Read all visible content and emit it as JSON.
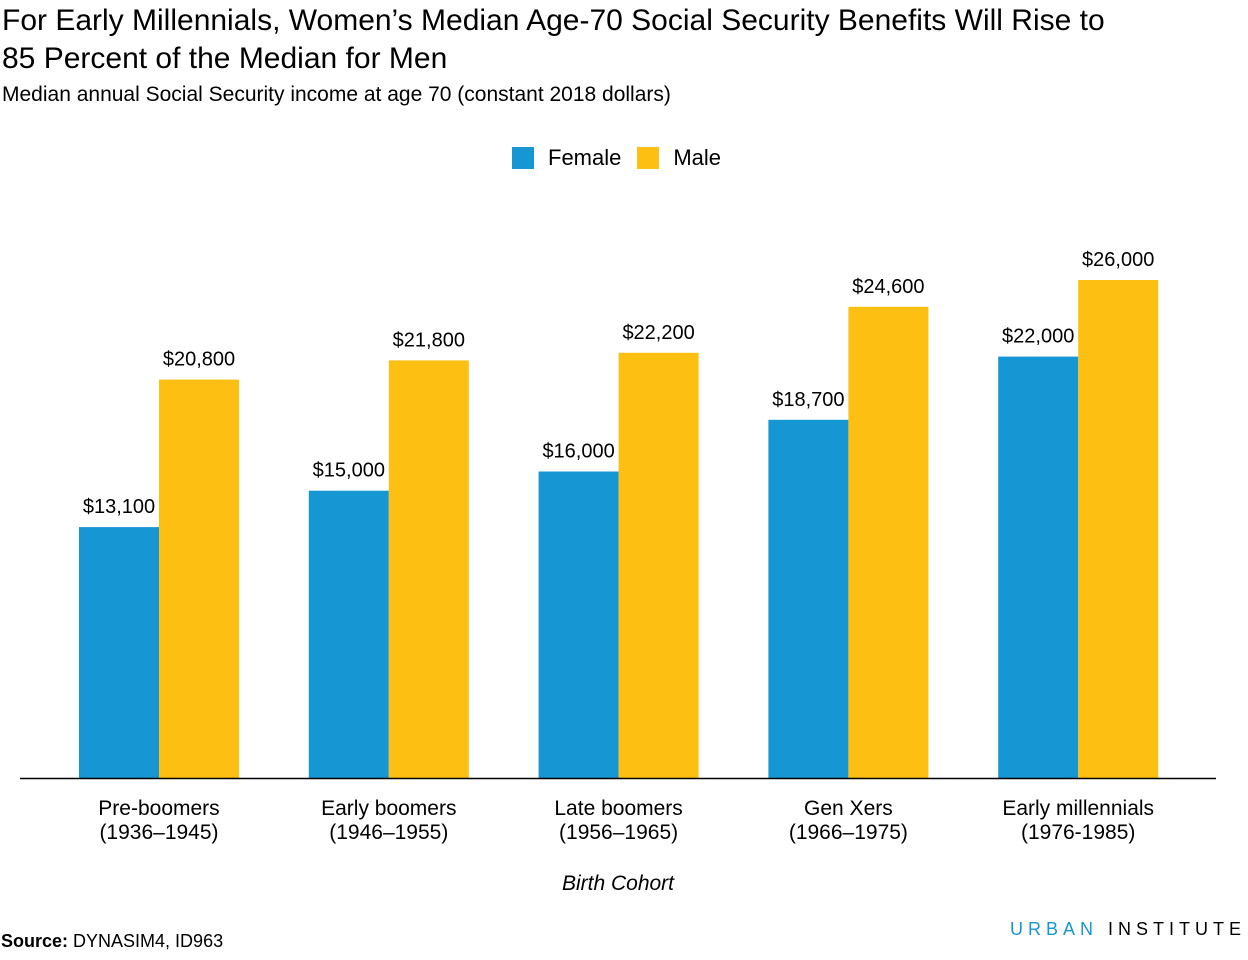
{
  "title_lines": [
    "For Early Millennials, Women’s Median Age-70 Social Security Benefits Will Rise to",
    "85 Percent of the Median for Men"
  ],
  "subtitle": "Median annual Social Security income at age 70 (constant 2018 dollars)",
  "source_label": "Source:",
  "source_text": " DYNASIM4, ID963",
  "brand": {
    "part1": "URBAN",
    "part2": "INSTITUTE"
  },
  "chart_data": {
    "type": "bar",
    "title": "For Early Millennials, Women’s Median Age-70 Social Security Benefits Will Rise to 85 Percent of the Median for Men",
    "subtitle": "Median annual Social Security income at age 70 (constant 2018 dollars)",
    "xlabel": "Birth Cohort",
    "ylabel": "",
    "ylim": [
      0,
      26000
    ],
    "grid": false,
    "legend_position": "top-center",
    "categories": [
      [
        "Pre-boomers",
        "(1936–1945)"
      ],
      [
        "Early boomers",
        "(1946–1955)"
      ],
      [
        "Late boomers",
        "(1956–1965)"
      ],
      [
        "Gen Xers",
        "(1966–1975)"
      ],
      [
        "Early millennials",
        "(1976-1985)"
      ]
    ],
    "series": [
      {
        "name": "Female",
        "color": "#1696d2",
        "values": [
          13100,
          15000,
          16000,
          18700,
          22000
        ],
        "labels": [
          "$13,100",
          "$15,000",
          "$16,000",
          "$18,700",
          "$22,000"
        ]
      },
      {
        "name": "Male",
        "color": "#fdbf11",
        "values": [
          20800,
          21800,
          22200,
          24600,
          26000
        ],
        "labels": [
          "$20,800",
          "$21,800",
          "$22,200",
          "$24,600",
          "$26,000"
        ]
      }
    ]
  }
}
